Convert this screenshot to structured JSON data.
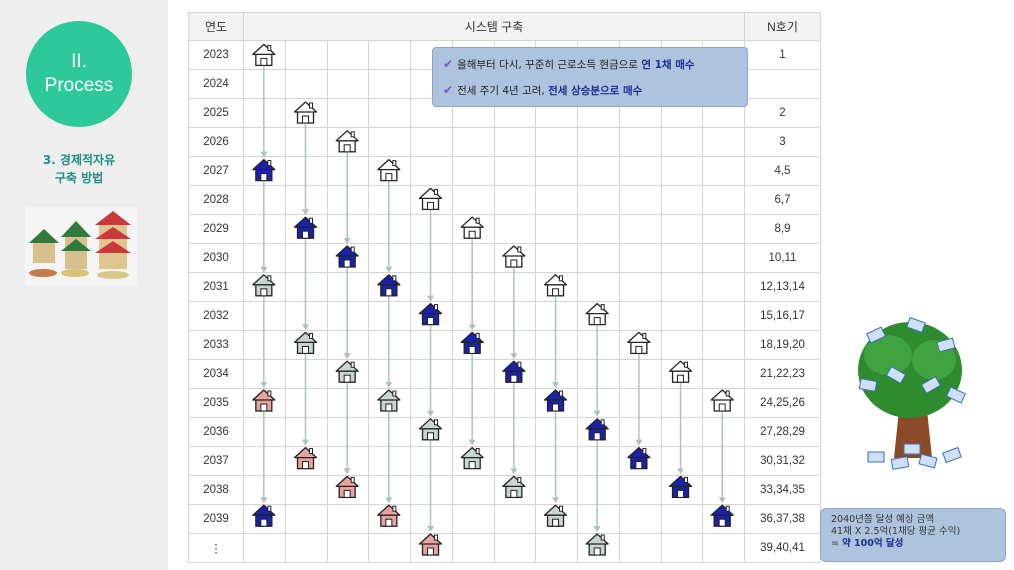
{
  "sidebar": {
    "section_line1": "II.",
    "section_line2": "Process",
    "subtitle_line1": "3. 경제적자유",
    "subtitle_line2": "구축 방법"
  },
  "table": {
    "headers": {
      "year": "연도",
      "system": "시스템 구축",
      "n": "N호기"
    },
    "rows": [
      {
        "year": "2023",
        "n": "1"
      },
      {
        "year": "2024",
        "n": ""
      },
      {
        "year": "2025",
        "n": "2"
      },
      {
        "year": "2026",
        "n": "3"
      },
      {
        "year": "2027",
        "n": "4,5"
      },
      {
        "year": "2028",
        "n": "6,7"
      },
      {
        "year": "2029",
        "n": "8,9"
      },
      {
        "year": "2030",
        "n": "10,11"
      },
      {
        "year": "2031",
        "n": "12,13,14"
      },
      {
        "year": "2032",
        "n": "15,16,17"
      },
      {
        "year": "2033",
        "n": "18,19,20"
      },
      {
        "year": "2034",
        "n": "21,22,23"
      },
      {
        "year": "2035",
        "n": "24,25,26"
      },
      {
        "year": "2036",
        "n": "27,28,29"
      },
      {
        "year": "2037",
        "n": "30,31,32"
      },
      {
        "year": "2038",
        "n": "33,34,35"
      },
      {
        "year": "2039",
        "n": "36,37,38"
      },
      {
        "year": "⋮",
        "n": "39,40,41"
      }
    ]
  },
  "callout": {
    "line1_prefix": "올해부터 다시, 꾸준히 근로소득 현금으로 ",
    "line1_bold": "연 1채 매수",
    "line2_prefix": "전세 주기 4년 고려, ",
    "line2_bold": "전세 상승분으로 매수"
  },
  "summary": {
    "line1": "2040년쯤 달성 예상 금액",
    "line2": "41채 X 2.5억(1채당 평균 수익)",
    "line3_prefix": "= ",
    "line3_bold": "약 100억 달성"
  },
  "colors": {
    "accent": "#2ec99b",
    "subtitle": "#1d8f86",
    "callout_bg": "#aec3de",
    "house_outline": "#ffffff",
    "house_blue": "#1a22a8",
    "house_green": "#c9d6d0",
    "house_pink": "#e8a3a0",
    "arrow": "#a9c4be"
  },
  "house_columns": [
    [
      "outline@0",
      "blue@4",
      "green@8",
      "pink@12",
      "blue@16"
    ],
    [
      "outline@2",
      "blue@6",
      "green@10",
      "pink@14"
    ],
    [
      "outline@3",
      "blue@7",
      "green@11",
      "pink@15"
    ],
    [
      "outline@4",
      "blue@8",
      "green@12",
      "pink@16"
    ],
    [
      "outline@5",
      "blue@9",
      "green@13",
      "pink@17"
    ],
    [
      "outline@6",
      "blue@10",
      "green@14"
    ],
    [
      "outline@7",
      "blue@11",
      "green@15"
    ],
    [
      "outline@8",
      "blue@12",
      "green@16"
    ],
    [
      "outline@9",
      "blue@13",
      "green@17"
    ],
    [
      "outline@10",
      "blue@14"
    ],
    [
      "outline@11",
      "blue@15"
    ],
    [
      "outline@12",
      "blue@16"
    ]
  ]
}
